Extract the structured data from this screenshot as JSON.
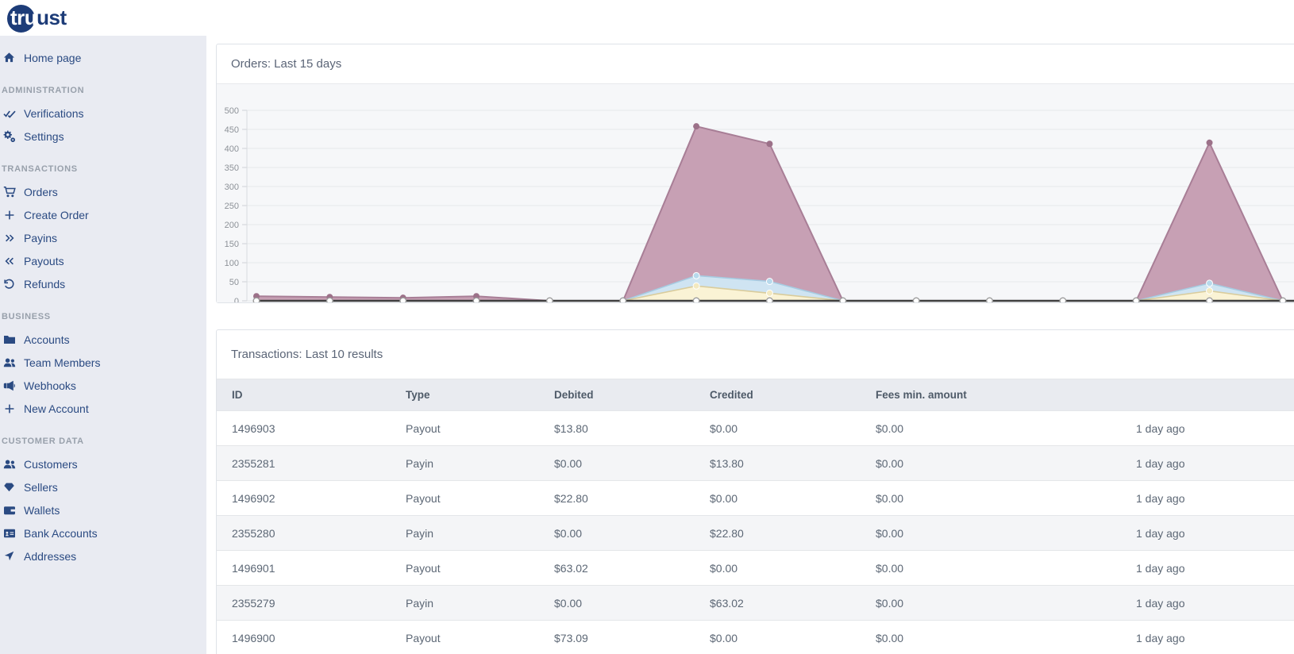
{
  "brand": {
    "logo_tru": "tru",
    "logo_ust": "ust",
    "navy": "#1d3c78"
  },
  "sidebar": {
    "sections": [
      {
        "header": null,
        "items": [
          {
            "icon": "home-icon",
            "label": "Home page"
          }
        ]
      },
      {
        "header": "ADMINISTRATION",
        "items": [
          {
            "icon": "check-double-icon",
            "label": "Verifications"
          },
          {
            "icon": "cogs-icon",
            "label": "Settings"
          }
        ]
      },
      {
        "header": "TRANSACTIONS",
        "items": [
          {
            "icon": "cart-icon",
            "label": "Orders"
          },
          {
            "icon": "plus-icon",
            "label": "Create Order"
          },
          {
            "icon": "angles-right-icon",
            "label": "Payins"
          },
          {
            "icon": "angles-left-icon",
            "label": "Payouts"
          },
          {
            "icon": "undo-icon",
            "label": "Refunds"
          }
        ]
      },
      {
        "header": "BUSINESS",
        "items": [
          {
            "icon": "folder-icon",
            "label": "Accounts"
          },
          {
            "icon": "users-icon",
            "label": "Team Members"
          },
          {
            "icon": "bullhorn-icon",
            "label": "Webhooks"
          },
          {
            "icon": "plus-icon",
            "label": "New Account"
          }
        ]
      },
      {
        "header": "CUSTOMER DATA",
        "items": [
          {
            "icon": "users-icon",
            "label": "Customers"
          },
          {
            "icon": "gem-icon",
            "label": "Sellers"
          },
          {
            "icon": "wallet-icon",
            "label": "Wallets"
          },
          {
            "icon": "id-card-icon",
            "label": "Bank Accounts"
          },
          {
            "icon": "location-arrow-icon",
            "label": "Addresses"
          }
        ]
      }
    ]
  },
  "orders_card": {
    "title": "Orders: Last 15 days"
  },
  "chart_data": {
    "type": "area",
    "title": "Orders: Last 15 days",
    "x": [
      1,
      2,
      3,
      4,
      5,
      6,
      7,
      8,
      9,
      10,
      11,
      12,
      13,
      14,
      15
    ],
    "x_tick_labels": [],
    "ylim": [
      0,
      500
    ],
    "ytick_step": 50,
    "grid": true,
    "legend": false,
    "panel_bg": "#f6f7f9",
    "series": [
      {
        "name": "series-pink",
        "fill": "#c7a0b4",
        "line": "#a87e96",
        "dot": "#9c7189",
        "values": [
          12,
          10,
          8,
          12,
          0,
          0,
          458,
          412,
          0,
          0,
          0,
          0,
          0,
          415,
          0
        ]
      },
      {
        "name": "series-blue",
        "fill": "#cfe4f2",
        "line": "#a6cce2",
        "dot": "#b7d9ec",
        "values": [
          0,
          0,
          0,
          0,
          0,
          0,
          66,
          51,
          0,
          0,
          0,
          0,
          0,
          46,
          0
        ]
      },
      {
        "name": "series-yellow",
        "fill": "#faf3d5",
        "line": "#d9cc9c",
        "dot": "#f3e9c0",
        "values": [
          0,
          0,
          0,
          0,
          0,
          0,
          39,
          20,
          0,
          0,
          0,
          0,
          0,
          26,
          0
        ]
      },
      {
        "name": "series-dark",
        "fill": "none",
        "line": "#3f3f3f",
        "dot": "#ffffff",
        "values": [
          0,
          0,
          0,
          0,
          0,
          0,
          0,
          0,
          0,
          0,
          0,
          0,
          0,
          0,
          0
        ]
      }
    ]
  },
  "transactions_card": {
    "title": "Transactions: Last 10 results",
    "columns": [
      "ID",
      "Type",
      "Debited",
      "Credited",
      "Fees min. amount",
      ""
    ],
    "rows": [
      [
        "1496903",
        "Payout",
        "$13.80",
        "$0.00",
        "$0.00",
        "1 day ago"
      ],
      [
        "2355281",
        "Payin",
        "$0.00",
        "$13.80",
        "$0.00",
        "1 day ago"
      ],
      [
        "1496902",
        "Payout",
        "$22.80",
        "$0.00",
        "$0.00",
        "1 day ago"
      ],
      [
        "2355280",
        "Payin",
        "$0.00",
        "$22.80",
        "$0.00",
        "1 day ago"
      ],
      [
        "1496901",
        "Payout",
        "$63.02",
        "$0.00",
        "$0.00",
        "1 day ago"
      ],
      [
        "2355279",
        "Payin",
        "$0.00",
        "$63.02",
        "$0.00",
        "1 day ago"
      ],
      [
        "1496900",
        "Payout",
        "$73.09",
        "$0.00",
        "$0.00",
        "1 day ago"
      ]
    ]
  }
}
